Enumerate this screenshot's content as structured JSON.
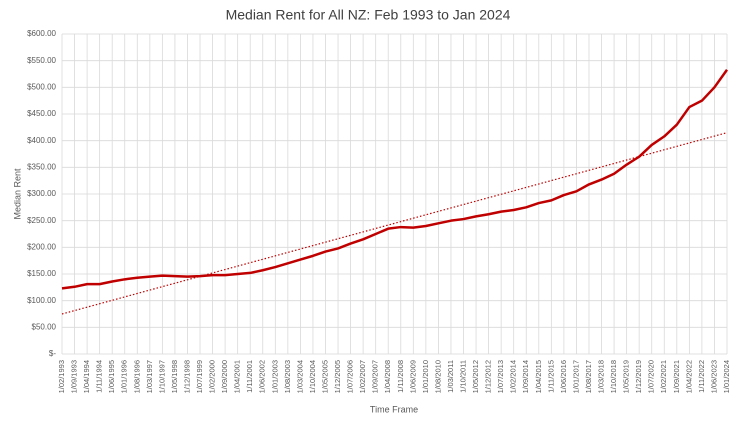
{
  "chart_data": {
    "type": "line",
    "title": "Median Rent for All NZ: Feb 1993 to Jan 2024",
    "x_label": "Time Frame",
    "y_label": "Median Rent",
    "categories": [
      "1/02/1993",
      "1/09/1993",
      "1/04/1994",
      "1/11/1994",
      "1/06/1995",
      "1/01/1996",
      "1/08/1996",
      "1/03/1997",
      "1/10/1997",
      "1/05/1998",
      "1/12/1998",
      "1/07/1999",
      "1/02/2000",
      "1/09/2000",
      "1/04/2001",
      "1/11/2001",
      "1/06/2002",
      "1/01/2003",
      "1/08/2003",
      "1/03/2004",
      "1/10/2004",
      "1/05/2005",
      "1/12/2005",
      "1/07/2006",
      "1/02/2007",
      "1/09/2007",
      "1/04/2008",
      "1/11/2008",
      "1/06/2009",
      "1/01/2010",
      "1/08/2010",
      "1/03/2011",
      "1/10/2011",
      "1/05/2012",
      "1/12/2012",
      "1/07/2013",
      "1/02/2014",
      "1/09/2014",
      "1/04/2015",
      "1/11/2015",
      "1/06/2016",
      "1/01/2017",
      "1/08/2017",
      "1/03/2018",
      "1/10/2018",
      "1/05/2019",
      "1/12/2019",
      "1/07/2020",
      "1/02/2021",
      "1/09/2021",
      "1/04/2022",
      "1/11/2022",
      "1/06/2023",
      "1/01/2024"
    ],
    "values": [
      123,
      126,
      131,
      131,
      136,
      140,
      143,
      145,
      147,
      146,
      145,
      146,
      148,
      148,
      150,
      152,
      157,
      163,
      170,
      177,
      184,
      192,
      198,
      207,
      215,
      225,
      235,
      238,
      237,
      240,
      245,
      250,
      253,
      258,
      262,
      267,
      270,
      275,
      283,
      288,
      298,
      305,
      318,
      327,
      338,
      355,
      370,
      392,
      408,
      430,
      463,
      475,
      500,
      533
    ],
    "color": "#c00000",
    "trend": {
      "color": "#c00000",
      "start": 75,
      "end": 415
    },
    "ylim": [
      0,
      600
    ],
    "yticks": [
      {
        "value": 0,
        "label": "$-"
      },
      {
        "value": 50,
        "label": "$50.00"
      },
      {
        "value": 100,
        "label": "$100.00"
      },
      {
        "value": 150,
        "label": "$150.00"
      },
      {
        "value": 200,
        "label": "$200.00"
      },
      {
        "value": 250,
        "label": "$250.00"
      },
      {
        "value": 300,
        "label": "$300.00"
      },
      {
        "value": 350,
        "label": "$350.00"
      },
      {
        "value": 400,
        "label": "$400.00"
      },
      {
        "value": 450,
        "label": "$450.00"
      },
      {
        "value": 500,
        "label": "$500.00"
      },
      {
        "value": 550,
        "label": "$550.00"
      },
      {
        "value": 600,
        "label": "$600.00"
      }
    ],
    "grid": true
  }
}
